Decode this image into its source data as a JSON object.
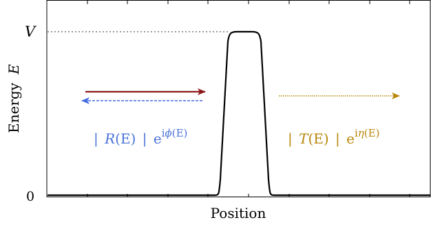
{
  "axes": {
    "xlabel": "Position",
    "ylabel_word": "Energy",
    "ylabel_symbol": "E",
    "ytick_top": "V",
    "ytick_bottom": "0"
  },
  "labels": {
    "reflection": {
      "bar": "|",
      "name": "R",
      "arg": "(E)",
      "base": "e",
      "exp_i": "i",
      "exp_sym": "ϕ",
      "exp_arg": "(E)"
    },
    "transmission": {
      "bar": "|",
      "name": "T",
      "arg": "(E)",
      "base": "e",
      "exp_i": "i",
      "exp_sym": "η",
      "exp_arg": "(E)"
    }
  },
  "colors": {
    "incident": "#8b1a1a",
    "reflected": "#4169e1",
    "transmitted": "#b8860b",
    "reflection_label": "#4a72d9",
    "transmission_label": "#b8860b",
    "barrier": "#000000"
  },
  "legend_icons": [
    "arrow-right-icon",
    "arrow-left-icon",
    "arrow-right-dotted-icon"
  ]
}
